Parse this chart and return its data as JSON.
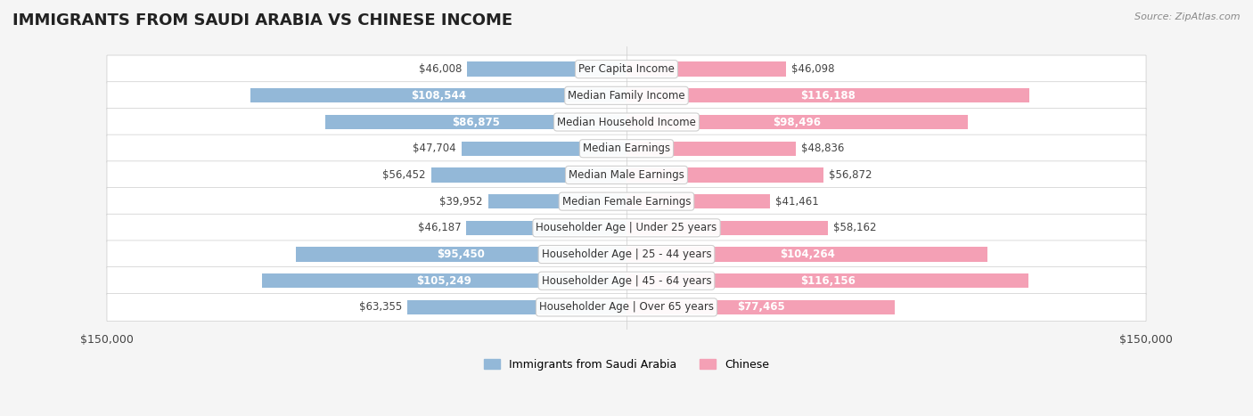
{
  "title": "IMMIGRANTS FROM SAUDI ARABIA VS CHINESE INCOME",
  "source": "Source: ZipAtlas.com",
  "categories": [
    "Per Capita Income",
    "Median Family Income",
    "Median Household Income",
    "Median Earnings",
    "Median Male Earnings",
    "Median Female Earnings",
    "Householder Age | Under 25 years",
    "Householder Age | 25 - 44 years",
    "Householder Age | 45 - 64 years",
    "Householder Age | Over 65 years"
  ],
  "saudi_values": [
    46008,
    108544,
    86875,
    47704,
    56452,
    39952,
    46187,
    95450,
    105249,
    63355
  ],
  "chinese_values": [
    46098,
    116188,
    98496,
    48836,
    56872,
    41461,
    58162,
    104264,
    116156,
    77465
  ],
  "saudi_labels": [
    "$46,008",
    "$108,544",
    "$86,875",
    "$47,704",
    "$56,452",
    "$39,952",
    "$46,187",
    "$95,450",
    "$105,249",
    "$63,355"
  ],
  "chinese_labels": [
    "$46,098",
    "$116,188",
    "$98,496",
    "$48,836",
    "$56,872",
    "$41,461",
    "$58,162",
    "$104,264",
    "$116,156",
    "$77,465"
  ],
  "saudi_color": "#93b8d8",
  "chinese_color": "#f4a0b5",
  "saudi_label_color_outside": "#555555",
  "saudi_label_color_inside": "#ffffff",
  "chinese_label_color_outside": "#555555",
  "chinese_label_color_inside": "#ffffff",
  "saudi_inside_threshold": 70000,
  "chinese_inside_threshold": 70000,
  "max_value": 150000,
  "legend_saudi": "Immigrants from Saudi Arabia",
  "legend_chinese": "Chinese",
  "background_color": "#f5f5f5",
  "row_background": "#ffffff",
  "bar_height": 0.55,
  "label_fontsize": 8.5,
  "title_fontsize": 13,
  "category_fontsize": 8.5
}
